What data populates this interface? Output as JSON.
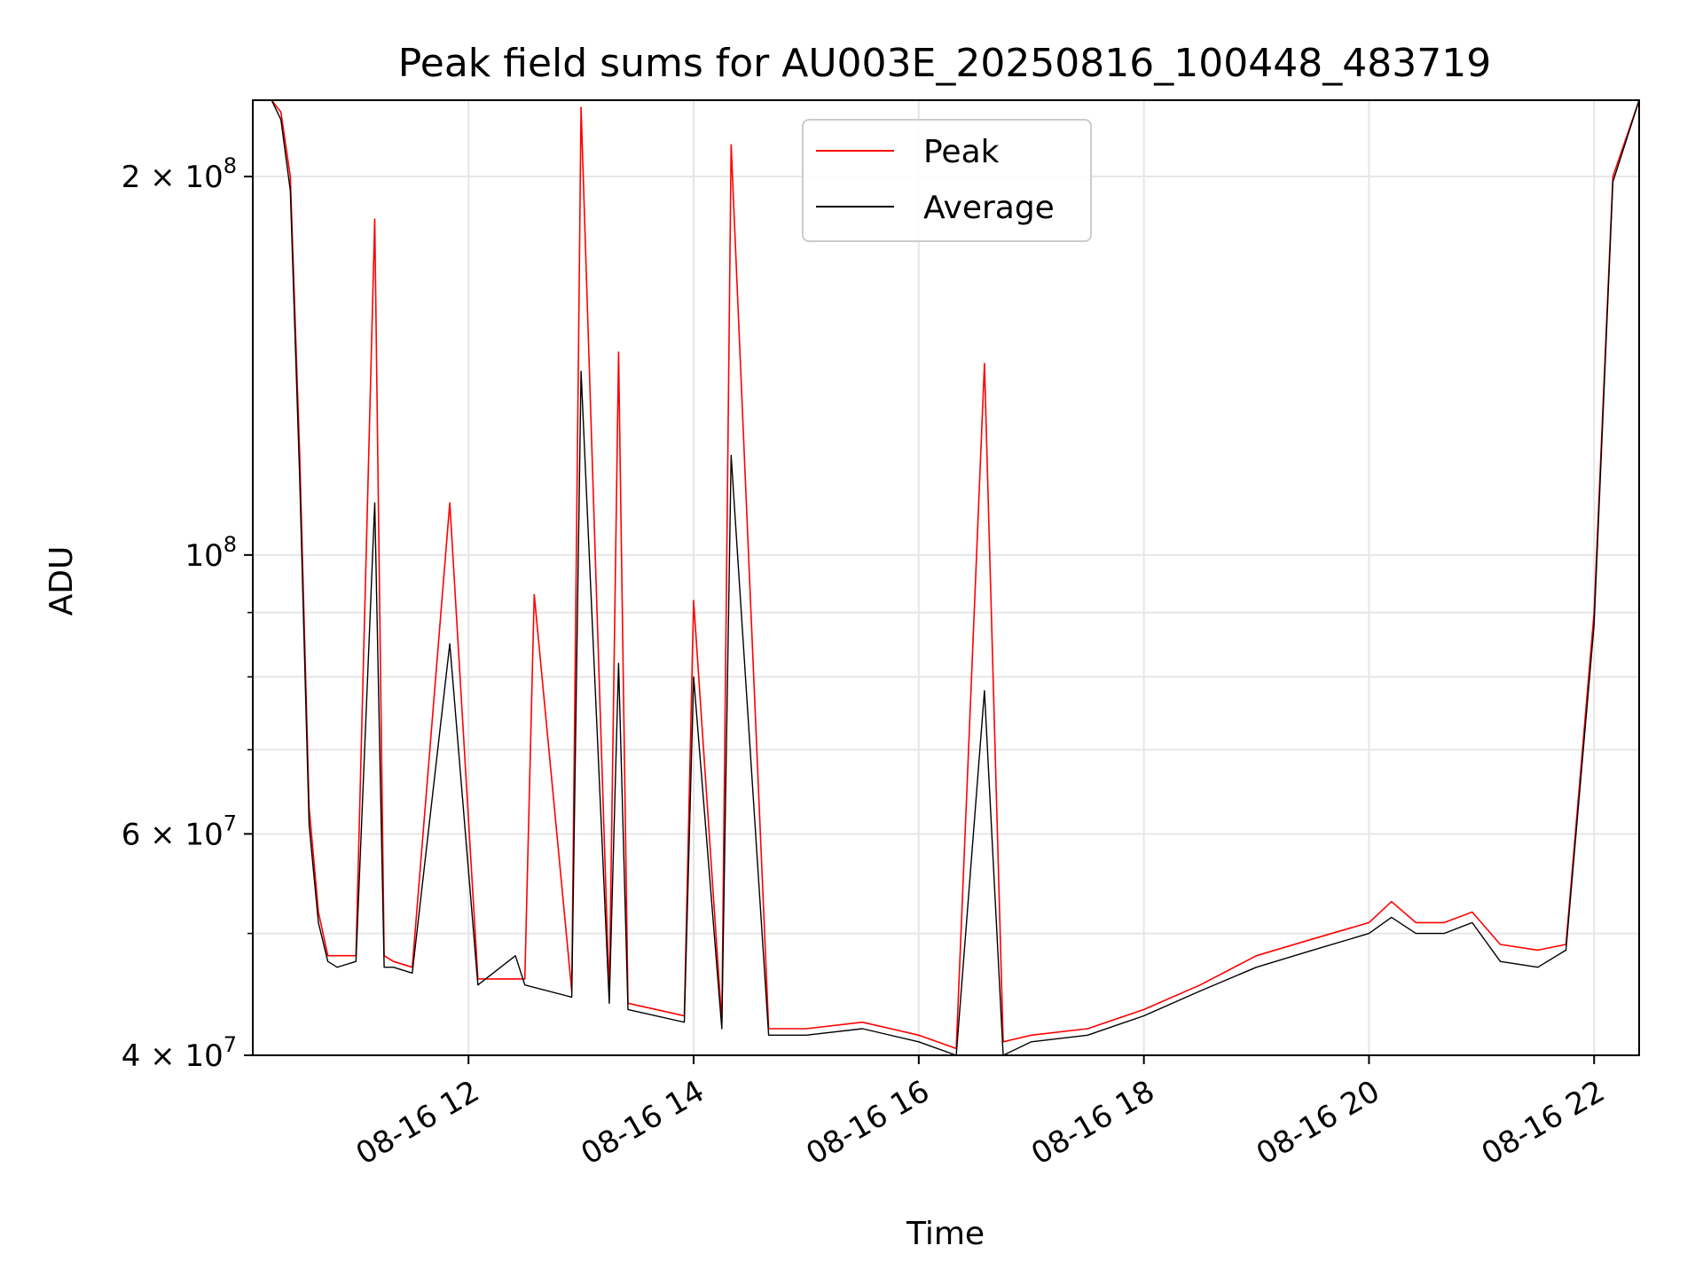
{
  "chart_data": {
    "type": "line",
    "title": "Peak field sums for AU003E_20250816_100448_483719",
    "xlabel": "Time",
    "ylabel": "ADU",
    "yscale": "log",
    "xlim": [
      "2025-08-16 10:05",
      "2025-08-16 22:24"
    ],
    "ylim": [
      40000000,
      230000000
    ],
    "grid": true,
    "legend_position": "top-center",
    "x_ticks": [
      {
        "value": "2025-08-16 12:00",
        "label": "08-16 12"
      },
      {
        "value": "2025-08-16 14:00",
        "label": "08-16 14"
      },
      {
        "value": "2025-08-16 16:00",
        "label": "08-16 16"
      },
      {
        "value": "2025-08-16 18:00",
        "label": "08-16 18"
      },
      {
        "value": "2025-08-16 20:00",
        "label": "08-16 20"
      },
      {
        "value": "2025-08-16 22:00",
        "label": "08-16 22"
      }
    ],
    "y_ticks": [
      {
        "value": 40000000,
        "mantissa": "4",
        "exponent": "7"
      },
      {
        "value": 60000000,
        "mantissa": "6",
        "exponent": "7"
      },
      {
        "value": 100000000,
        "mantissa": "",
        "exponent": "8"
      },
      {
        "value": 200000000,
        "mantissa": "2",
        "exponent": "8"
      }
    ],
    "y_minor_ticks": [
      50000000,
      70000000,
      80000000,
      90000000
    ],
    "series": [
      {
        "name": "Peak",
        "color": "#ff0000",
        "x": [
          "2025-08-16 10:05",
          "2025-08-16 10:15",
          "2025-08-16 10:20",
          "2025-08-16 10:25",
          "2025-08-16 10:30",
          "2025-08-16 10:35",
          "2025-08-16 10:40",
          "2025-08-16 10:45",
          "2025-08-16 10:50",
          "2025-08-16 11:00",
          "2025-08-16 11:10",
          "2025-08-16 11:15",
          "2025-08-16 11:20",
          "2025-08-16 11:30",
          "2025-08-16 11:50",
          "2025-08-16 12:05",
          "2025-08-16 12:30",
          "2025-08-16 12:35",
          "2025-08-16 12:55",
          "2025-08-16 13:00",
          "2025-08-16 13:15",
          "2025-08-16 13:20",
          "2025-08-16 13:25",
          "2025-08-16 13:55",
          "2025-08-16 14:00",
          "2025-08-16 14:15",
          "2025-08-16 14:20",
          "2025-08-16 14:40",
          "2025-08-16 15:00",
          "2025-08-16 15:30",
          "2025-08-16 16:00",
          "2025-08-16 16:20",
          "2025-08-16 16:35",
          "2025-08-16 16:45",
          "2025-08-16 17:00",
          "2025-08-16 17:30",
          "2025-08-16 18:00",
          "2025-08-16 18:30",
          "2025-08-16 19:00",
          "2025-08-16 19:30",
          "2025-08-16 20:00",
          "2025-08-16 20:12",
          "2025-08-16 20:25",
          "2025-08-16 20:40",
          "2025-08-16 20:55",
          "2025-08-16 21:10",
          "2025-08-16 21:30",
          "2025-08-16 21:45",
          "2025-08-16 22:00",
          "2025-08-16 22:10",
          "2025-08-16 22:24"
        ],
        "y": [
          230000000,
          230000000,
          225000000,
          200000000,
          120000000,
          63000000,
          52000000,
          48000000,
          48000000,
          48000000,
          185000000,
          48000000,
          47500000,
          47000000,
          110000000,
          46000000,
          46000000,
          93000000,
          45000000,
          227000000,
          44500000,
          145000000,
          44000000,
          43000000,
          92000000,
          42500000,
          212000000,
          42000000,
          42000000,
          42500000,
          41500000,
          40500000,
          142000000,
          41000000,
          41500000,
          42000000,
          43500000,
          45500000,
          48000000,
          49500000,
          51000000,
          53000000,
          51000000,
          51000000,
          52000000,
          49000000,
          48500000,
          49000000,
          90000000,
          200000000,
          230000000
        ]
      },
      {
        "name": "Average",
        "color": "#000000",
        "x": [
          "2025-08-16 10:05",
          "2025-08-16 10:15",
          "2025-08-16 10:20",
          "2025-08-16 10:25",
          "2025-08-16 10:30",
          "2025-08-16 10:35",
          "2025-08-16 10:40",
          "2025-08-16 10:45",
          "2025-08-16 10:50",
          "2025-08-16 11:00",
          "2025-08-16 11:10",
          "2025-08-16 11:15",
          "2025-08-16 11:20",
          "2025-08-16 11:30",
          "2025-08-16 11:50",
          "2025-08-16 12:05",
          "2025-08-16 12:25",
          "2025-08-16 12:30",
          "2025-08-16 12:55",
          "2025-08-16 13:00",
          "2025-08-16 13:15",
          "2025-08-16 13:20",
          "2025-08-16 13:25",
          "2025-08-16 13:55",
          "2025-08-16 14:00",
          "2025-08-16 14:15",
          "2025-08-16 14:20",
          "2025-08-16 14:40",
          "2025-08-16 15:00",
          "2025-08-16 15:30",
          "2025-08-16 16:00",
          "2025-08-16 16:20",
          "2025-08-16 16:35",
          "2025-08-16 16:45",
          "2025-08-16 17:00",
          "2025-08-16 17:30",
          "2025-08-16 18:00",
          "2025-08-16 18:30",
          "2025-08-16 19:00",
          "2025-08-16 19:30",
          "2025-08-16 20:00",
          "2025-08-16 20:12",
          "2025-08-16 20:25",
          "2025-08-16 20:40",
          "2025-08-16 20:55",
          "2025-08-16 21:10",
          "2025-08-16 21:30",
          "2025-08-16 21:45",
          "2025-08-16 22:00",
          "2025-08-16 22:10",
          "2025-08-16 22:24"
        ],
        "y": [
          230000000,
          230000000,
          222000000,
          195000000,
          115000000,
          61000000,
          51000000,
          47500000,
          47000000,
          47500000,
          110000000,
          47000000,
          47000000,
          46500000,
          85000000,
          45500000,
          48000000,
          45500000,
          44500000,
          140000000,
          44000000,
          82000000,
          43500000,
          42500000,
          80000000,
          42000000,
          120000000,
          41500000,
          41500000,
          42000000,
          41000000,
          40000000,
          78000000,
          40000000,
          41000000,
          41500000,
          43000000,
          45000000,
          47000000,
          48500000,
          50000000,
          51500000,
          50000000,
          50000000,
          51000000,
          47500000,
          47000000,
          48500000,
          88000000,
          198000000,
          230000000
        ]
      }
    ]
  }
}
